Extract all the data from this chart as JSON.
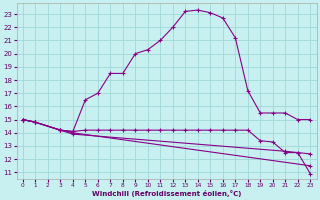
{
  "xlabel": "Windchill (Refroidissement éolien,°C)",
  "bg_color": "#c8f0f0",
  "grid_color": "#a0d8d8",
  "line_color": "#880088",
  "xlim": [
    -0.5,
    23.5
  ],
  "ylim": [
    10.5,
    23.8
  ],
  "yticks": [
    11,
    12,
    13,
    14,
    15,
    16,
    17,
    18,
    19,
    20,
    21,
    22,
    23
  ],
  "xticks": [
    0,
    1,
    2,
    3,
    4,
    5,
    6,
    7,
    8,
    9,
    10,
    11,
    12,
    13,
    14,
    15,
    16,
    17,
    18,
    19,
    20,
    21,
    22,
    23
  ],
  "curve1_x": [
    0,
    1,
    3,
    4,
    5,
    6,
    7,
    8,
    9,
    10,
    11,
    12,
    13,
    14,
    15,
    16,
    17,
    18,
    19,
    20,
    21,
    22,
    23
  ],
  "curve1_y": [
    15.0,
    14.8,
    14.2,
    14.1,
    16.5,
    17.0,
    18.5,
    18.5,
    20.0,
    20.3,
    21.0,
    22.0,
    23.2,
    23.3,
    23.1,
    22.7,
    21.2,
    17.2,
    15.5,
    15.5,
    15.5,
    15.0,
    15.0
  ],
  "curve2_x": [
    0,
    1,
    3,
    4,
    5,
    6,
    7,
    8,
    9,
    10,
    11,
    12,
    13,
    14,
    15,
    16,
    17,
    18,
    19,
    20,
    21,
    22,
    23
  ],
  "curve2_y": [
    15.0,
    14.8,
    14.2,
    14.1,
    14.2,
    14.2,
    14.2,
    14.2,
    14.2,
    14.2,
    14.2,
    14.2,
    14.2,
    14.2,
    14.2,
    14.2,
    14.2,
    14.2,
    13.4,
    13.3,
    12.5,
    12.5,
    12.4
  ],
  "curve3_x": [
    0,
    1,
    3,
    4,
    23
  ],
  "curve3_y": [
    15.0,
    14.8,
    14.2,
    14.0,
    11.5
  ],
  "curve4_x": [
    0,
    1,
    3,
    4,
    21,
    22,
    23
  ],
  "curve4_y": [
    15.0,
    14.8,
    14.2,
    13.9,
    12.6,
    12.5,
    10.9
  ]
}
